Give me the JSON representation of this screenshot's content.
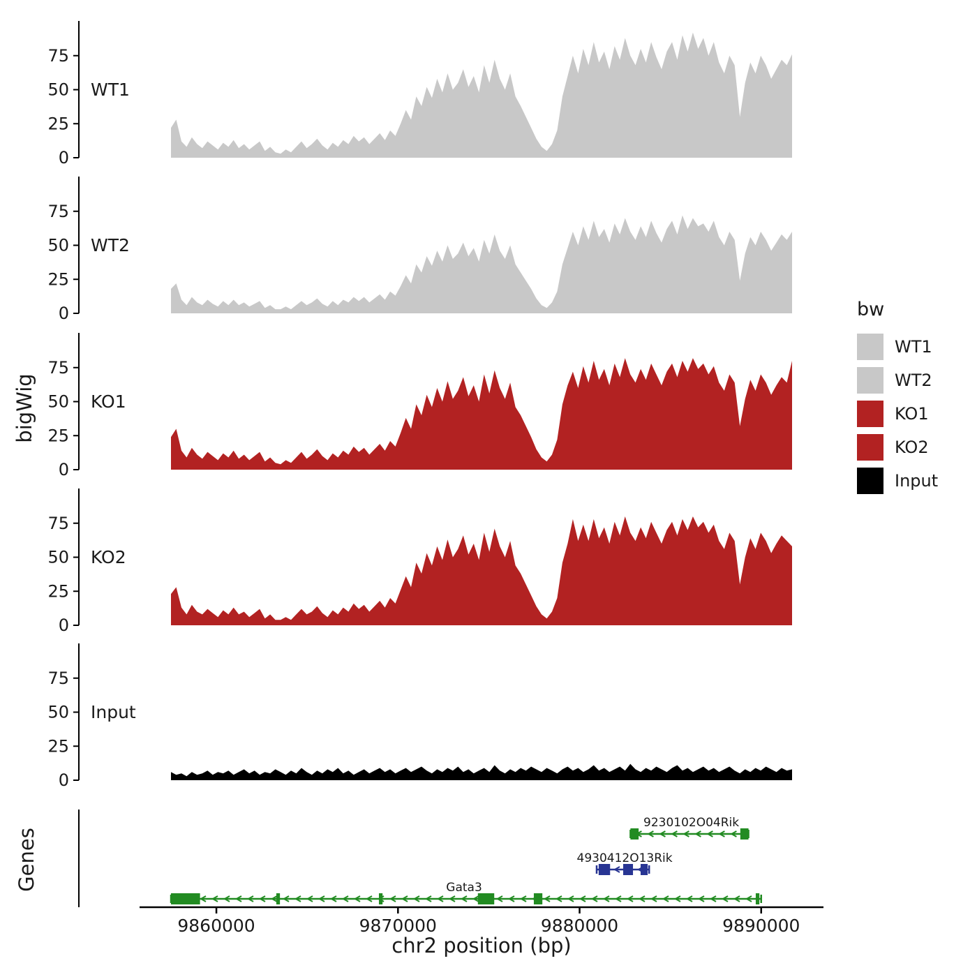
{
  "y_axis": {
    "label": "bigWig",
    "ticks": [
      0,
      25,
      50,
      75
    ]
  },
  "x_axis": {
    "label": "chr2 position (bp)",
    "ticks": [
      9860000,
      9870000,
      9880000,
      9890000
    ],
    "tick_labels": [
      "9860000",
      "9870000",
      "9880000",
      "9890000"
    ]
  },
  "legend": {
    "title": "bw",
    "items": [
      {
        "label": "WT1",
        "color": "#c8c8c8"
      },
      {
        "label": "WT2",
        "color": "#c8c8c8"
      },
      {
        "label": "KO1",
        "color": "#B22222"
      },
      {
        "label": "KO2",
        "color": "#B22222"
      },
      {
        "label": "Input",
        "color": "#000000"
      }
    ]
  },
  "genes_panel": {
    "label": "Genes",
    "genes": [
      {
        "name": "9230102O04Rik",
        "color": "#228B22",
        "strand": "-",
        "row": 1,
        "start": 9882800,
        "end": 9889300,
        "label_bp": 9886150,
        "exons": [
          [
            9882800,
            9883250
          ],
          [
            9888850,
            9889300
          ]
        ]
      },
      {
        "name": "4930412O13Rik",
        "color": "#283593",
        "strand": "-",
        "row": 2,
        "start": 9880940,
        "end": 9883830,
        "label_bp": 9882480,
        "exons": [
          [
            9881050,
            9881680
          ],
          [
            9882400,
            9882940
          ],
          [
            9883360,
            9883750
          ]
        ]
      },
      {
        "name": "Gata3",
        "color": "#228B22",
        "strand": "-",
        "row": 3,
        "start": 9857500,
        "end": 9890000,
        "label_bp": 9873640,
        "exons": [
          [
            9857500,
            9859100
          ],
          [
            9863300,
            9863500
          ],
          [
            9868950,
            9869150
          ],
          [
            9874400,
            9875300
          ],
          [
            9877480,
            9877950
          ],
          [
            9889700,
            9889900
          ]
        ]
      }
    ]
  },
  "chart_data": {
    "type": "area",
    "title": "",
    "xlabel": "chr2 position (bp)",
    "ylabel": "bigWig",
    "x_start": 9857500,
    "x_end": 9891700,
    "ylim": [
      0,
      100
    ],
    "y_ticks": [
      0,
      25,
      50,
      75
    ],
    "series": [
      {
        "name": "WT1",
        "color": "#c8c8c8",
        "values": [
          22,
          28,
          12,
          8,
          15,
          10,
          7,
          12,
          9,
          6,
          11,
          8,
          13,
          7,
          10,
          6,
          9,
          12,
          5,
          8,
          4,
          3,
          6,
          4,
          8,
          12,
          7,
          10,
          14,
          9,
          6,
          11,
          8,
          13,
          10,
          16,
          12,
          15,
          10,
          14,
          18,
          13,
          20,
          16,
          25,
          35,
          28,
          45,
          38,
          52,
          44,
          58,
          48,
          62,
          50,
          55,
          65,
          52,
          60,
          48,
          68,
          55,
          72,
          58,
          50,
          62,
          45,
          38,
          30,
          22,
          14,
          8,
          5,
          10,
          20,
          45,
          60,
          75,
          62,
          80,
          68,
          85,
          70,
          78,
          65,
          82,
          72,
          88,
          75,
          68,
          80,
          70,
          85,
          74,
          65,
          78,
          85,
          72,
          90,
          78,
          92,
          80,
          88,
          75,
          85,
          70,
          62,
          75,
          68,
          30,
          55,
          70,
          62,
          75,
          68,
          58,
          65,
          72,
          68,
          76
        ]
      },
      {
        "name": "WT2",
        "color": "#c8c8c8",
        "values": [
          18,
          22,
          10,
          6,
          12,
          8,
          6,
          10,
          7,
          5,
          9,
          6,
          10,
          6,
          8,
          5,
          7,
          9,
          4,
          6,
          3,
          3,
          5,
          3,
          6,
          9,
          6,
          8,
          11,
          7,
          5,
          9,
          6,
          10,
          8,
          12,
          9,
          12,
          8,
          11,
          14,
          10,
          16,
          13,
          20,
          28,
          22,
          36,
          30,
          42,
          35,
          46,
          38,
          50,
          40,
          44,
          52,
          42,
          48,
          38,
          54,
          44,
          58,
          46,
          40,
          50,
          36,
          30,
          24,
          18,
          11,
          6,
          4,
          8,
          16,
          36,
          48,
          60,
          50,
          64,
          54,
          68,
          56,
          62,
          52,
          66,
          58,
          70,
          60,
          54,
          64,
          56,
          68,
          59,
          52,
          62,
          68,
          58,
          72,
          62,
          70,
          64,
          66,
          60,
          68,
          56,
          50,
          60,
          54,
          24,
          44,
          56,
          50,
          60,
          54,
          46,
          52,
          58,
          54,
          60
        ]
      },
      {
        "name": "KO1",
        "color": "#B22222",
        "values": [
          24,
          30,
          14,
          9,
          16,
          11,
          8,
          13,
          10,
          7,
          12,
          9,
          14,
          8,
          11,
          7,
          10,
          13,
          6,
          9,
          5,
          4,
          7,
          5,
          9,
          13,
          8,
          11,
          15,
          10,
          7,
          12,
          9,
          14,
          11,
          17,
          13,
          16,
          11,
          15,
          19,
          14,
          21,
          17,
          27,
          38,
          30,
          48,
          40,
          55,
          46,
          60,
          50,
          65,
          52,
          58,
          68,
          54,
          62,
          50,
          70,
          56,
          73,
          60,
          52,
          64,
          46,
          40,
          32,
          24,
          15,
          9,
          6,
          11,
          22,
          48,
          62,
          72,
          60,
          76,
          64,
          80,
          66,
          74,
          62,
          78,
          68,
          82,
          70,
          64,
          74,
          66,
          78,
          70,
          62,
          72,
          78,
          68,
          80,
          72,
          82,
          74,
          78,
          70,
          76,
          64,
          58,
          70,
          64,
          32,
          52,
          66,
          58,
          70,
          64,
          55,
          62,
          68,
          64,
          80
        ]
      },
      {
        "name": "KO2",
        "color": "#B22222",
        "values": [
          23,
          28,
          13,
          8,
          15,
          10,
          8,
          12,
          9,
          6,
          11,
          8,
          13,
          8,
          10,
          6,
          9,
          12,
          5,
          8,
          4,
          4,
          6,
          4,
          8,
          12,
          8,
          10,
          14,
          9,
          6,
          11,
          8,
          13,
          10,
          16,
          12,
          15,
          10,
          14,
          18,
          13,
          20,
          16,
          26,
          36,
          28,
          46,
          38,
          53,
          44,
          58,
          48,
          63,
          50,
          56,
          66,
          52,
          60,
          48,
          68,
          54,
          71,
          58,
          50,
          62,
          44,
          38,
          30,
          22,
          14,
          8,
          5,
          10,
          20,
          46,
          60,
          78,
          62,
          74,
          62,
          78,
          64,
          72,
          60,
          76,
          66,
          80,
          68,
          62,
          72,
          64,
          76,
          68,
          60,
          70,
          76,
          66,
          78,
          70,
          80,
          72,
          76,
          68,
          74,
          62,
          56,
          68,
          62,
          30,
          50,
          64,
          56,
          68,
          62,
          53,
          60,
          66,
          62,
          58
        ]
      },
      {
        "name": "Input",
        "color": "#000000",
        "values": [
          6,
          4,
          5,
          3,
          6,
          4,
          5,
          7,
          4,
          6,
          5,
          7,
          4,
          6,
          8,
          5,
          7,
          4,
          6,
          5,
          8,
          6,
          4,
          7,
          5,
          9,
          6,
          4,
          7,
          5,
          8,
          6,
          9,
          5,
          7,
          4,
          6,
          8,
          5,
          7,
          9,
          6,
          8,
          5,
          7,
          9,
          6,
          8,
          10,
          7,
          5,
          8,
          6,
          9,
          7,
          10,
          6,
          8,
          5,
          7,
          9,
          6,
          11,
          7,
          5,
          8,
          6,
          9,
          7,
          10,
          8,
          6,
          9,
          7,
          5,
          8,
          10,
          7,
          9,
          6,
          8,
          11,
          7,
          9,
          6,
          8,
          10,
          7,
          12,
          8,
          6,
          9,
          7,
          10,
          8,
          6,
          9,
          11,
          7,
          9,
          6,
          8,
          10,
          7,
          9,
          6,
          8,
          10,
          7,
          5,
          8,
          6,
          9,
          7,
          10,
          8,
          6,
          9,
          7,
          8
        ]
      }
    ]
  }
}
